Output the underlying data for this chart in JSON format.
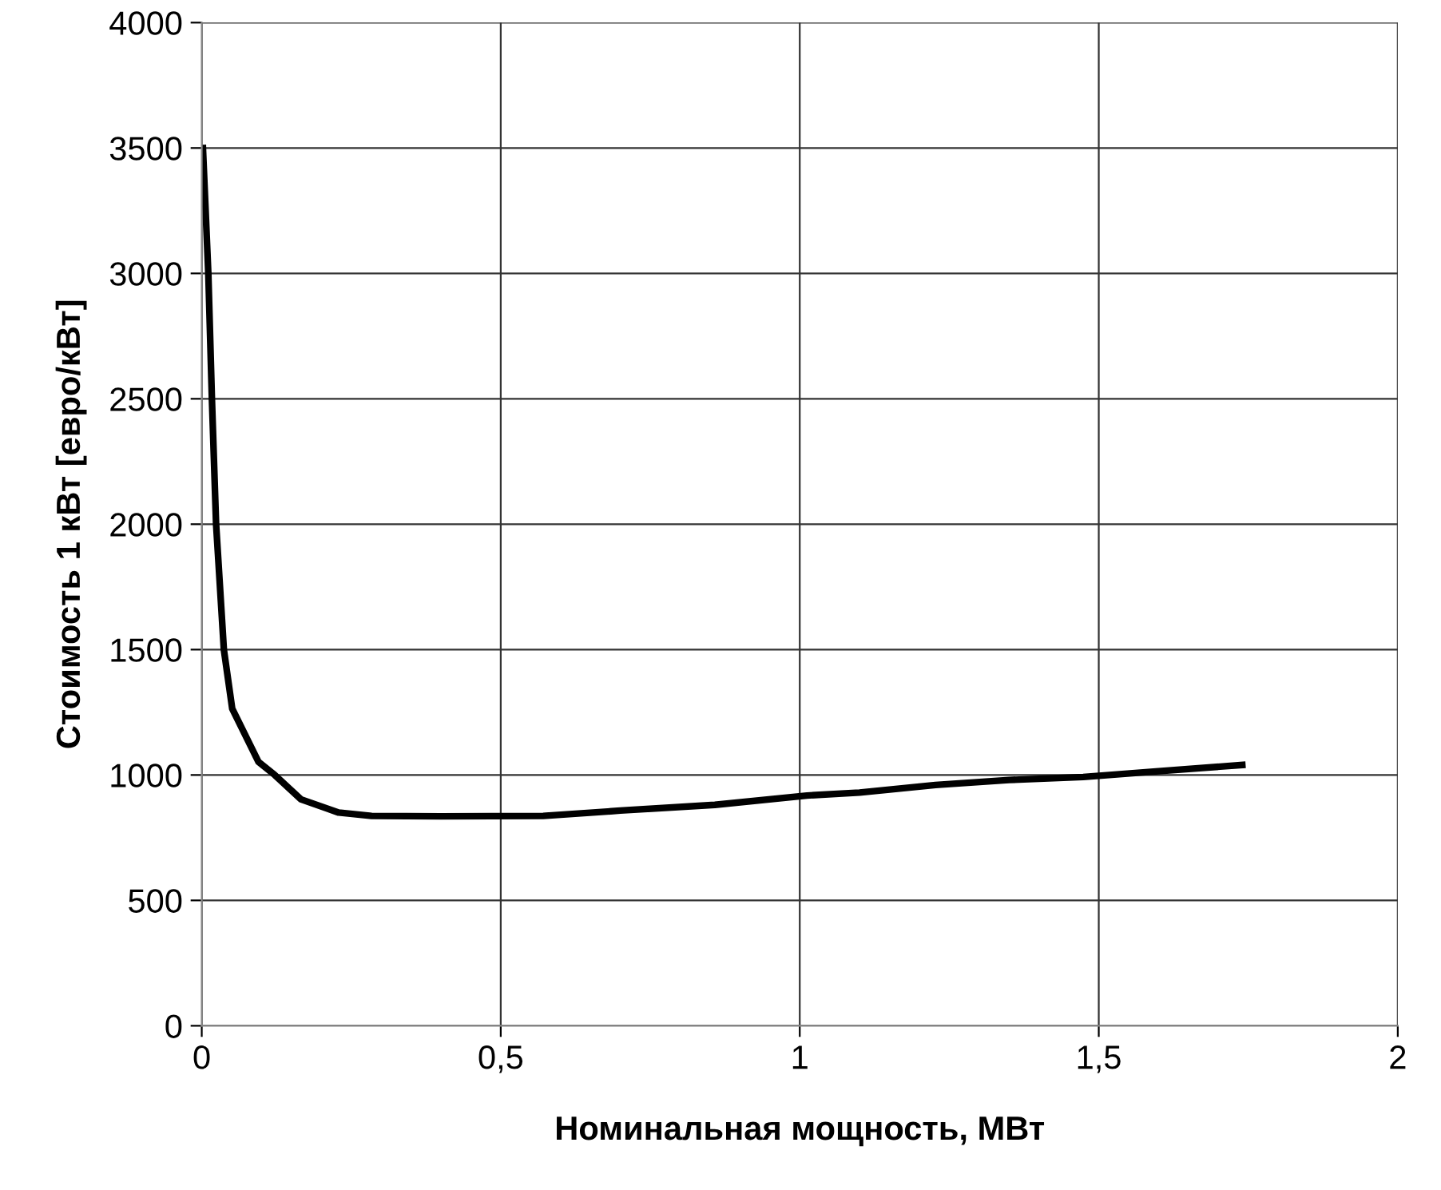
{
  "chart_data": {
    "type": "line",
    "xlabel": "Номинальная мощность, МВт",
    "ylabel": "Стоимость 1 кВт [евро/кВт]",
    "series": [
      {
        "color": "#000000",
        "x": [
          0.002,
          0.011,
          0.017,
          0.024,
          0.037,
          0.051,
          0.095,
          0.122,
          0.166,
          0.229,
          0.284,
          0.4,
          0.571,
          0.7,
          0.858,
          1.012,
          1.1,
          1.227,
          1.35,
          1.474,
          1.6,
          1.74
        ],
        "values": [
          3500,
          3000,
          2500,
          2000,
          1500,
          1264,
          1052,
          1000,
          903,
          850,
          837,
          835,
          837,
          858,
          881,
          918,
          930,
          960,
          980,
          992,
          1015,
          1040
        ]
      }
    ],
    "xlim": [
      0,
      2
    ],
    "xticks": [
      {
        "value": 0,
        "label": "0"
      },
      {
        "value": 0.5,
        "label": "0,5"
      },
      {
        "value": 1,
        "label": "1"
      },
      {
        "value": 1.5,
        "label": "1,5"
      },
      {
        "value": 2,
        "label": "2"
      }
    ],
    "ylim": [
      0,
      4000
    ],
    "yticks": [
      0,
      500,
      1000,
      1500,
      2000,
      2500,
      3000,
      3500,
      4000
    ],
    "grid": true,
    "legend": false,
    "marker": "none",
    "line_style": "solid"
  }
}
